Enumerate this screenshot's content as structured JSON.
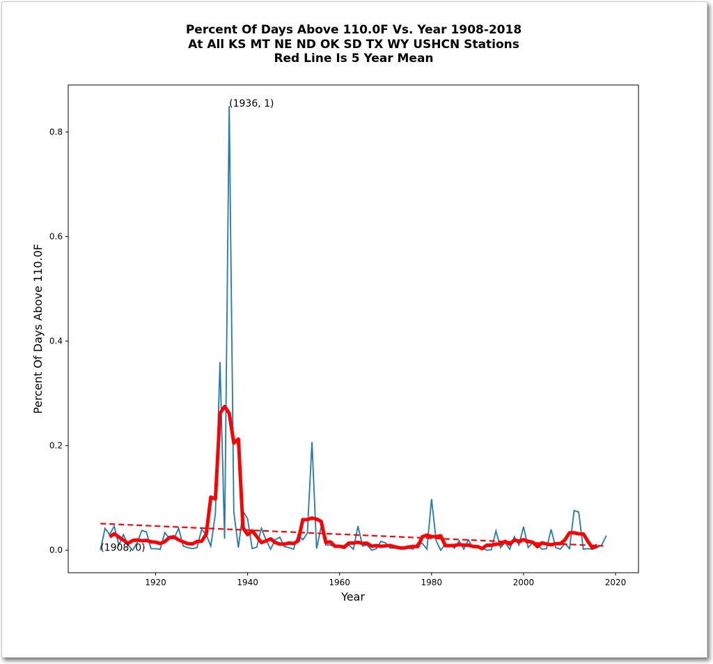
{
  "chart_data": {
    "type": "line",
    "title_lines": [
      "Percent Of Days Above 110.0F Vs. Year 1908-2018",
      "At All KS MT NE ND OK SD TX WY USHCN Stations",
      "Red Line Is 5 Year Mean"
    ],
    "xlabel": "Year",
    "ylabel": "Percent Of Days Above 110.0F",
    "xlim": [
      1901,
      2025
    ],
    "ylim": [
      -0.043,
      0.89
    ],
    "xticks": [
      1920,
      1940,
      1960,
      1980,
      2000,
      2020
    ],
    "yticks": [
      0.0,
      0.2,
      0.4,
      0.6,
      0.8
    ],
    "ytick_labels": [
      "0.0",
      "0.2",
      "0.4",
      "0.6",
      "0.8"
    ],
    "x_start": 1908,
    "series": [
      {
        "name": "Percent of days",
        "color": "#1f77b4",
        "values": [
          0,
          0.042,
          0.03,
          0.046,
          0.01,
          0.03,
          0.01,
          0.0,
          0.015,
          0.038,
          0.035,
          0.003,
          0.003,
          0.002,
          0.034,
          0.022,
          0.022,
          0.042,
          0.008,
          0.005,
          0.003,
          0.005,
          0.04,
          0.03,
          0.008,
          0.07,
          0.36,
          0.022,
          0.85,
          0.073,
          0.005,
          0.075,
          0.06,
          0.003,
          0.006,
          0.042,
          0.02,
          0.002,
          0.02,
          0.025,
          0.007,
          0.005,
          0.002,
          0.03,
          0.02,
          0.033,
          0.207,
          0.003,
          0.045,
          0.01,
          0.01,
          0.007,
          0.008,
          0.003,
          0.01,
          0.002,
          0.046,
          0.008,
          0.01,
          0.0,
          0.003,
          0.017,
          0.014,
          0.004,
          0.004,
          0.007,
          0.004,
          0.004,
          0.002,
          0.014,
          0.013,
          0.002,
          0.098,
          0.018,
          0.0,
          0.012,
          0.01,
          0.004,
          0.018,
          0.002,
          0.02,
          0.005,
          0.005,
          0.005,
          0.0,
          0.001,
          0.037,
          0.005,
          0.015,
          0.002,
          0.026,
          0.01,
          0.045,
          0.005,
          0.015,
          0.01,
          0.002,
          0.003,
          0.04,
          0.005,
          0.002,
          0.013,
          0.003,
          0.076,
          0.073,
          0.002,
          0.003,
          0.002,
          0.005,
          0.01,
          0.028
        ]
      },
      {
        "name": "5 Year Mean",
        "color": "#ff0000",
        "window": 5
      }
    ],
    "trend": {
      "name": "Trend",
      "color": "#ff0000",
      "style": "dashed",
      "x": [
        1908,
        2018
      ],
      "y": [
        0.051,
        0.008
      ]
    },
    "annotations": [
      {
        "text": "(1936, 1)",
        "x": 1936,
        "y": 0.85
      },
      {
        "text": "(1908, 0)",
        "x": 1908,
        "y": 0.0
      }
    ],
    "grid": false
  }
}
